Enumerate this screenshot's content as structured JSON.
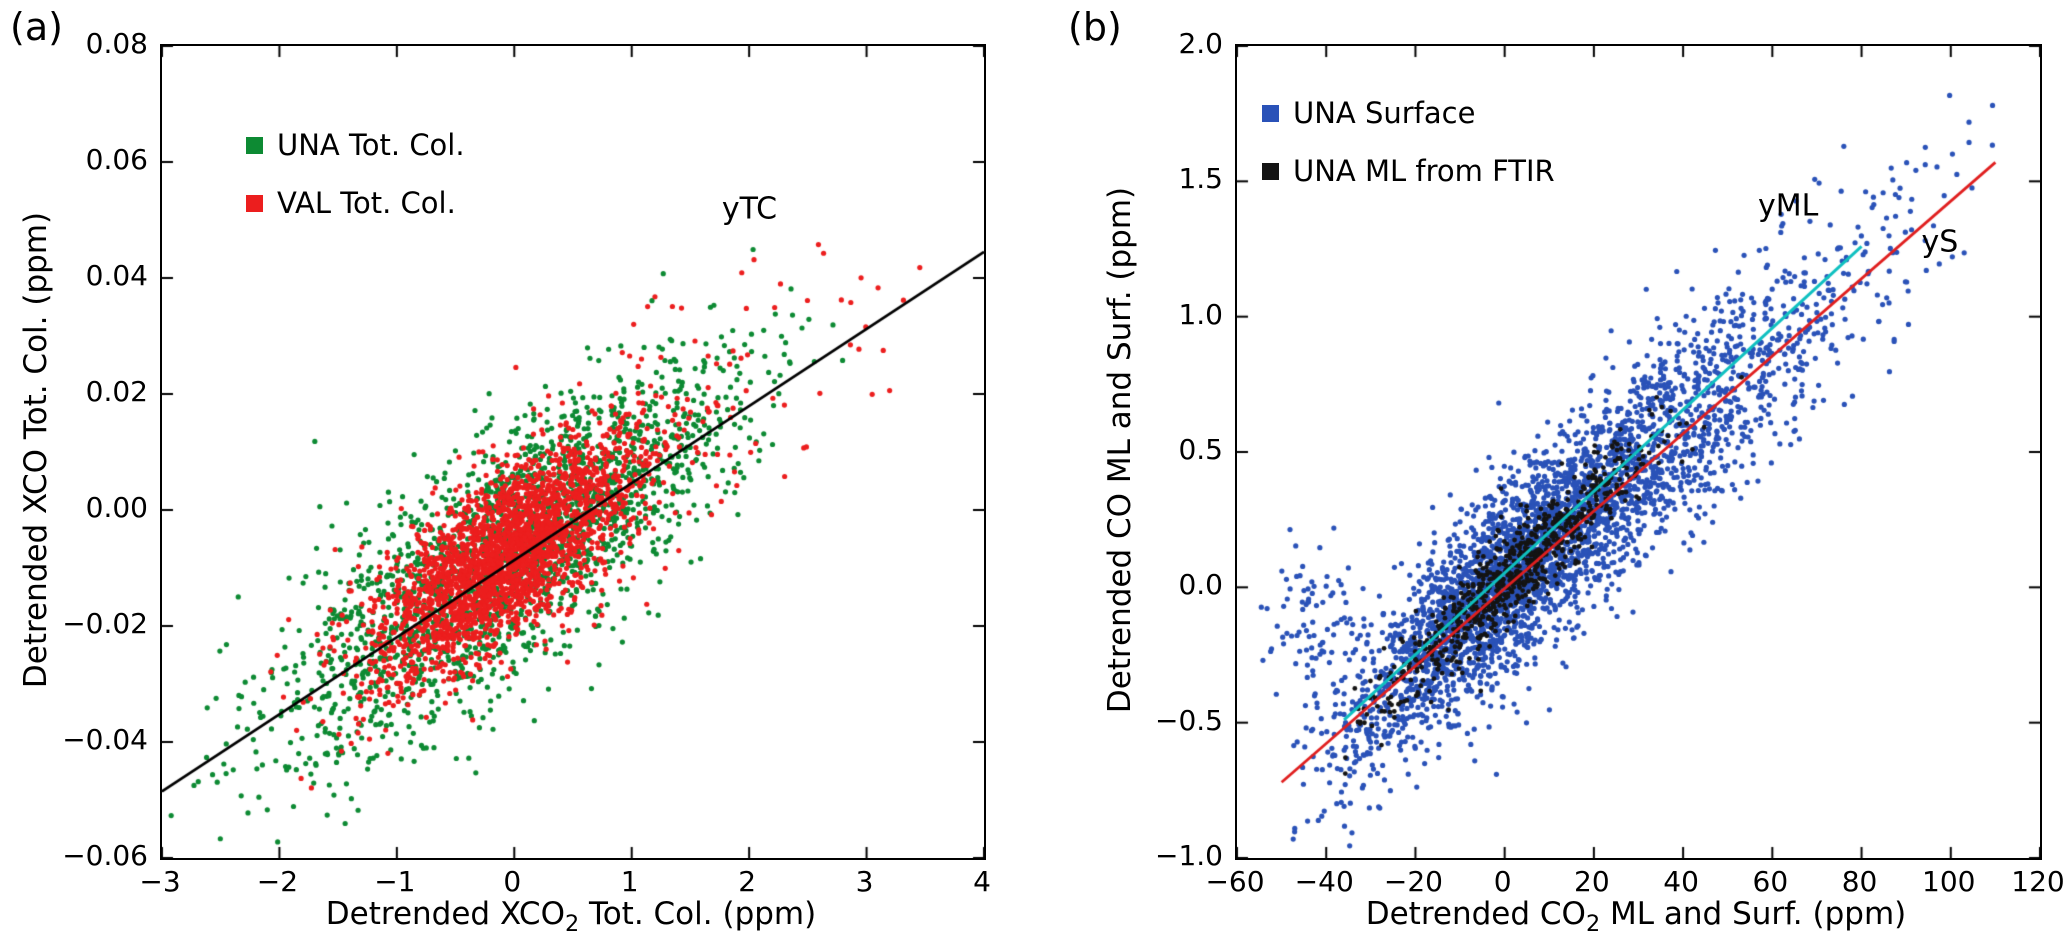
{
  "figure": {
    "background": "#ffffff"
  },
  "chart_data": [
    {
      "type": "scatter",
      "panel_label": "(a)",
      "title": "",
      "xlabel_pre": "Detrended XCO",
      "xlabel_sub": "2",
      "xlabel_post": " Tot. Col. (ppm)",
      "ylabel": "Detrended XCO Tot. Col. (ppm)",
      "xlim": [
        -3,
        4
      ],
      "ylim": [
        -0.06,
        0.08
      ],
      "xtick_values": [
        -3,
        -2,
        -1,
        0,
        1,
        2,
        3,
        4
      ],
      "xtick_labels": [
        "−3",
        "−2",
        "−1",
        "0",
        "1",
        "2",
        "3",
        "4"
      ],
      "ytick_values": [
        -0.06,
        -0.04,
        -0.02,
        0.0,
        0.02,
        0.04,
        0.06,
        0.08
      ],
      "ytick_labels": [
        "−0.06",
        "−0.04",
        "−0.02",
        "0.00",
        "0.02",
        "0.04",
        "0.06",
        "0.08"
      ],
      "grid": false,
      "legend_loc": "upper left",
      "series": [
        {
          "name": "UNA Tot. Col.",
          "color": "#0d8a33",
          "marker": "dot",
          "radius": 2.6,
          "seed": 101,
          "clusters": [
            {
              "n": 2100,
              "mu_x": 0.0,
              "sd_x": 0.95,
              "slope": 0.0133,
              "intercept": -0.007,
              "noise_sd": 0.0105,
              "x_clip": [
                -3.05,
                2.95
              ]
            }
          ]
        },
        {
          "name": "VAL Tot. Col.",
          "color": "#ec1e1e",
          "marker": "dot",
          "radius": 2.6,
          "seed": 202,
          "clusters": [
            {
              "n": 2300,
              "mu_x": -0.1,
              "sd_x": 0.55,
              "slope": 0.0133,
              "intercept": -0.007,
              "noise_sd": 0.0068,
              "x_clip": [
                -2.7,
                2.2
              ]
            },
            {
              "n": 300,
              "mu_x": 0.4,
              "sd_x": 1.3,
              "slope": 0.0133,
              "intercept": -0.006,
              "noise_sd": 0.011,
              "x_clip": [
                -2.2,
                3.5
              ]
            }
          ]
        }
      ],
      "fit_lines": [
        {
          "label": "yTC",
          "color": "#000000",
          "width": 2.6,
          "x": [
            -3,
            4
          ],
          "y": [
            -0.0485,
            0.0445
          ],
          "label_pos": [
            2.02,
            0.0515
          ]
        }
      ]
    },
    {
      "type": "scatter",
      "panel_label": "(b)",
      "title": "",
      "xlabel_pre": "Detrended CO",
      "xlabel_sub": "2",
      "xlabel_post": " ML and Surf. (ppm)",
      "ylabel": "Detrended CO ML and Surf. (ppm)",
      "xlim": [
        -60,
        120
      ],
      "ylim": [
        -1.0,
        2.0
      ],
      "xtick_values": [
        -60,
        -40,
        -20,
        0,
        20,
        40,
        60,
        80,
        100,
        120
      ],
      "xtick_labels": [
        "−60",
        "−40",
        "−20",
        "0",
        "20",
        "40",
        "60",
        "80",
        "100",
        "120"
      ],
      "ytick_values": [
        -1.0,
        -0.5,
        0.0,
        0.5,
        1.0,
        1.5,
        2.0
      ],
      "ytick_labels": [
        "−1.0",
        "−0.5",
        "0.0",
        "0.5",
        "1.0",
        "1.5",
        "2.0"
      ],
      "grid": false,
      "legend_loc": "upper left",
      "series": [
        {
          "name": "UNA Surface",
          "color": "#2a52b8",
          "marker": "dot",
          "radius": 2.6,
          "seed": 303,
          "clusters": [
            {
              "n": 2500,
              "mu_x": 0,
              "sd_x": 19,
              "slope": 0.0148,
              "intercept": 0.02,
              "noise_sd": 0.17,
              "x_clip": [
                -48,
                62
              ]
            },
            {
              "n": 1150,
              "mu_x": 38,
              "sd_x": 26,
              "slope": 0.0146,
              "intercept": 0.0,
              "noise_sd": 0.2,
              "x_clip": [
                -20,
                110
              ]
            },
            {
              "n": 80,
              "mu_x": -43,
              "sd_x": 5,
              "slope": 0.001,
              "intercept": -0.08,
              "noise_sd": 0.13,
              "x_clip": [
                -56,
                -28
              ]
            }
          ]
        },
        {
          "name": "UNA ML from FTIR",
          "color": "#141414",
          "marker": "dot",
          "radius": 2.4,
          "seed": 404,
          "clusters": [
            {
              "n": 780,
              "mu_x": 2,
              "sd_x": 16,
              "slope": 0.0152,
              "intercept": 0.02,
              "noise_sd": 0.085,
              "x_clip": [
                -36,
                78
              ]
            }
          ]
        }
      ],
      "fit_lines": [
        {
          "label": "yML",
          "color": "#0fc0c0",
          "width": 3.0,
          "x": [
            -36,
            80
          ],
          "y": [
            -0.49,
            1.26
          ],
          "label_pos": [
            64,
            1.4
          ]
        },
        {
          "label": "yS",
          "color": "#e01f1f",
          "width": 2.8,
          "x": [
            -50,
            110
          ],
          "y": [
            -0.72,
            1.57
          ],
          "label_pos": [
            98,
            1.27
          ]
        }
      ]
    }
  ]
}
